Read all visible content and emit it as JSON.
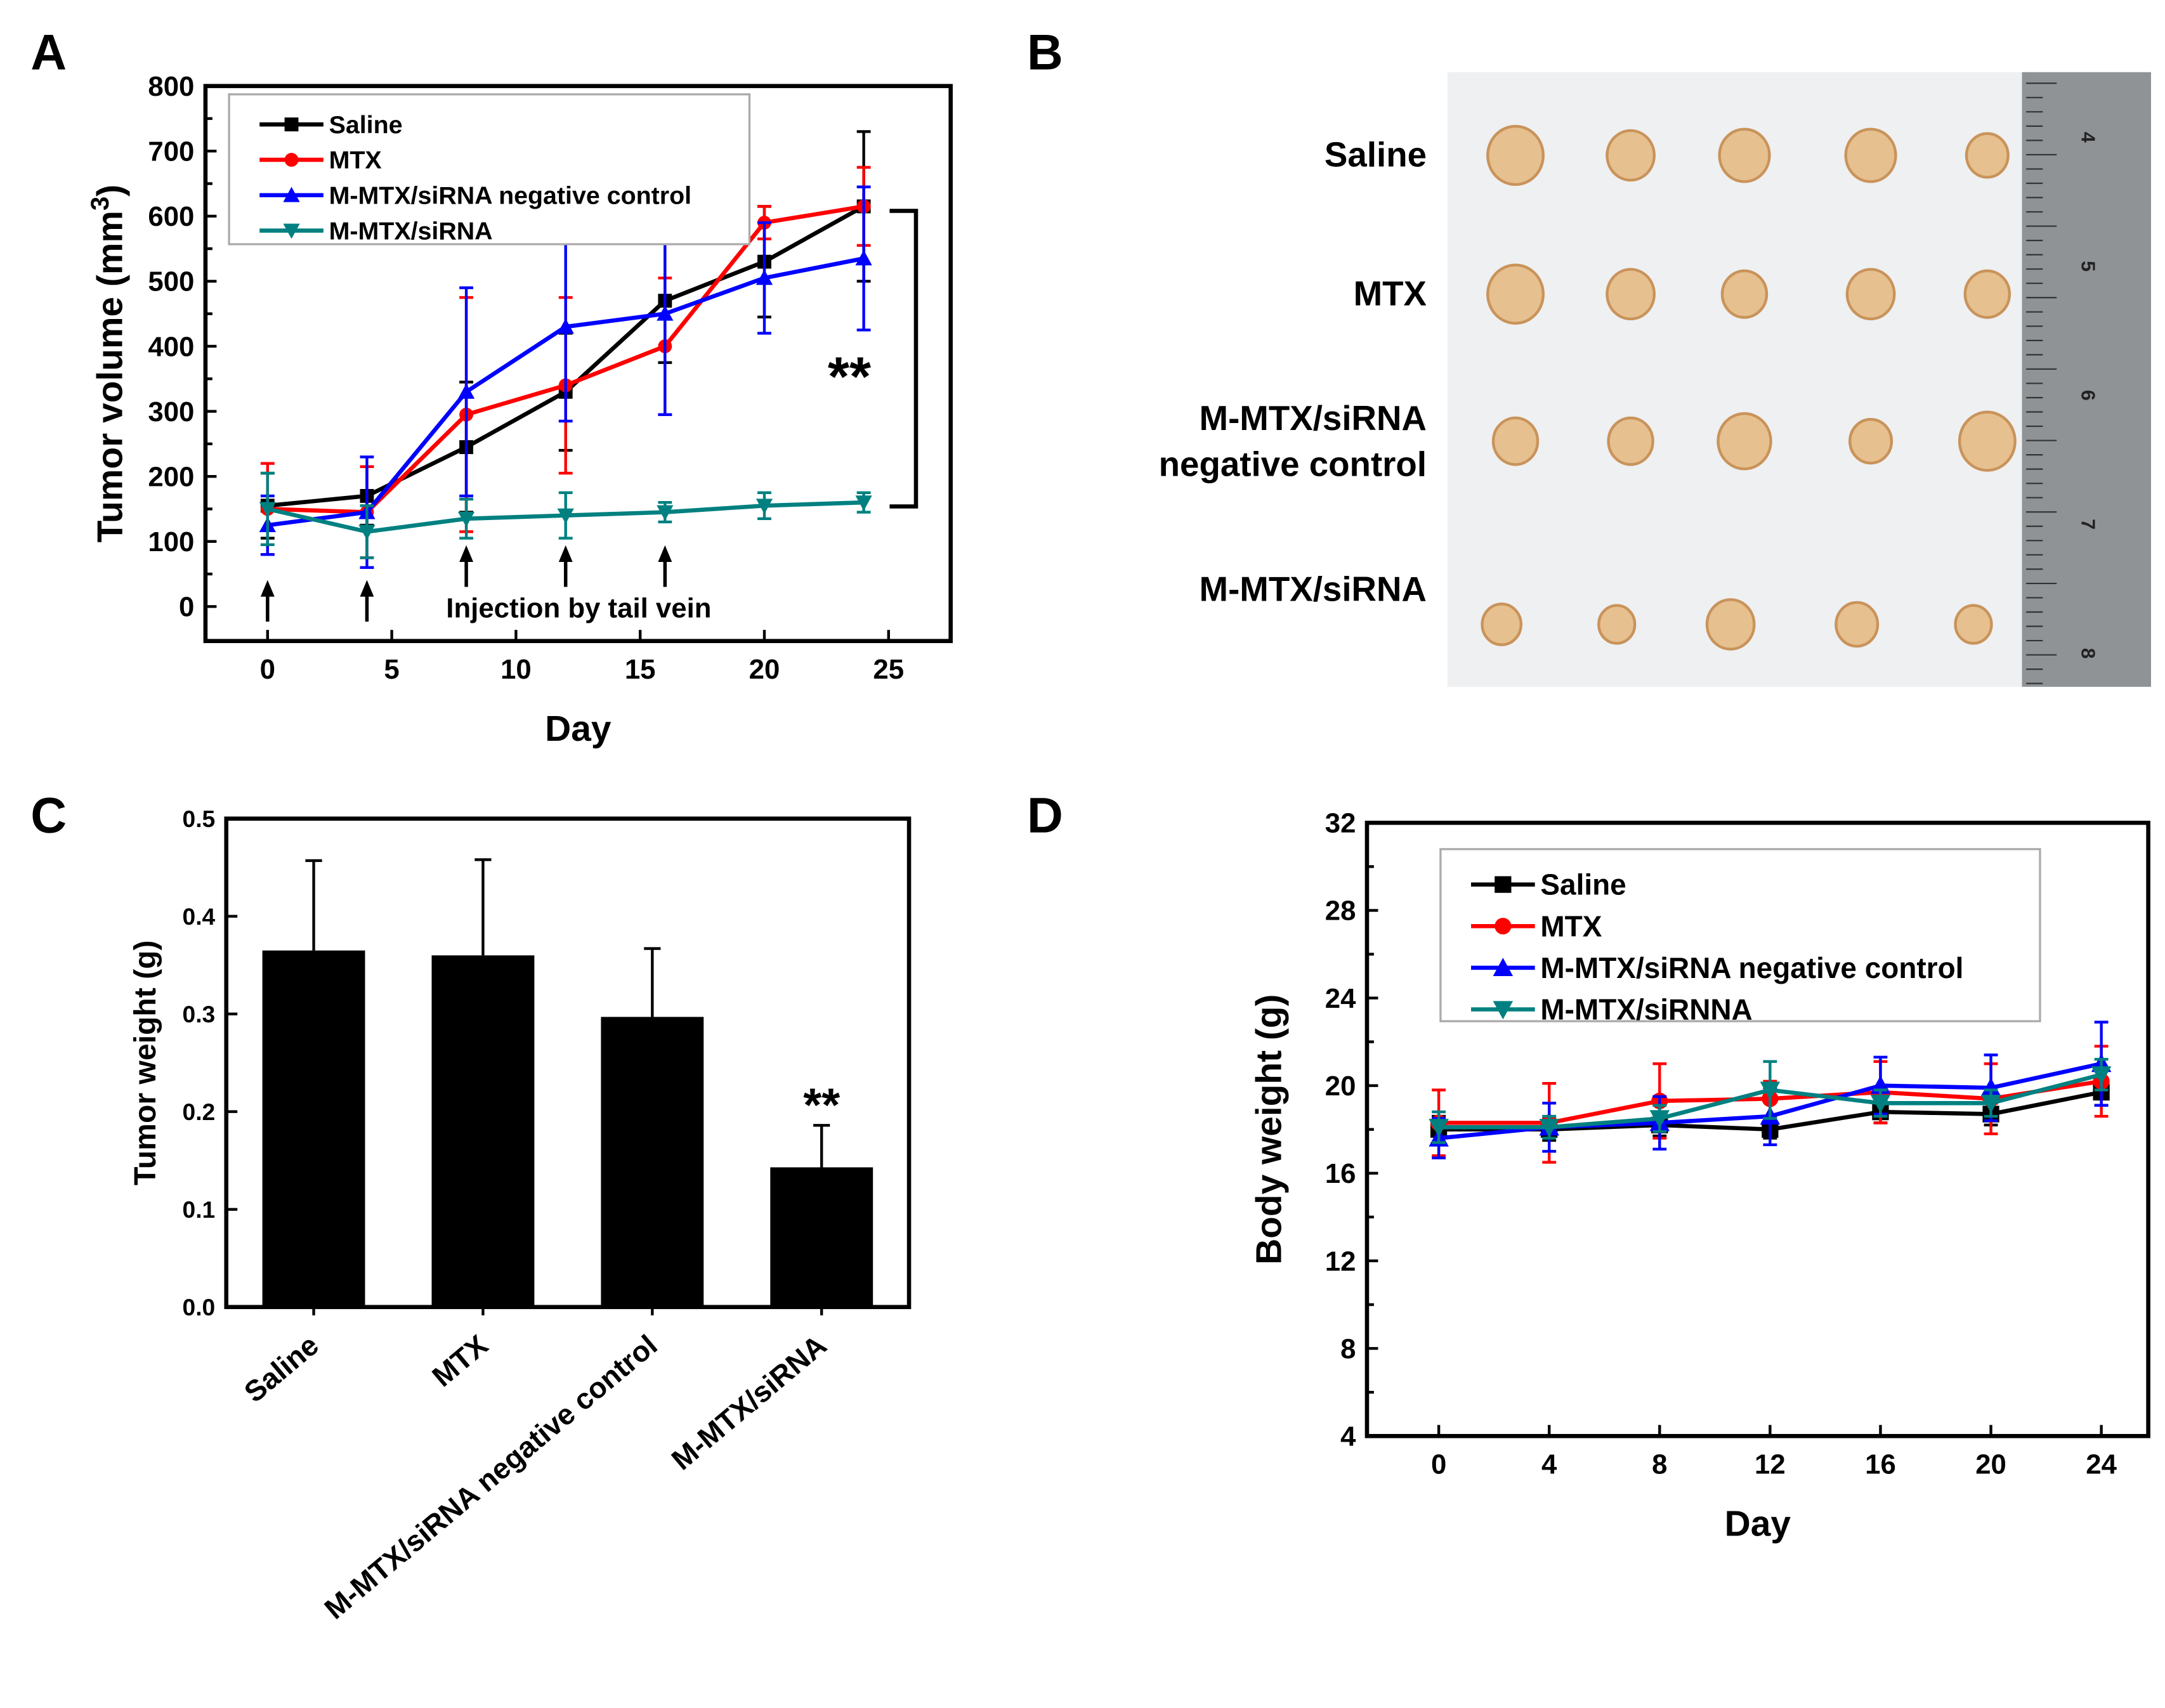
{
  "panel_labels": [
    "A",
    "B",
    "C",
    "D"
  ],
  "chart_data": [
    {
      "id": "A",
      "type": "line",
      "xlabel": "Day",
      "ylabel": "Tumor volume (mm",
      "ylabel_sup": "3",
      "ylabel_close": ")",
      "xlim": [
        -2.5,
        27.5
      ],
      "ylim": [
        -53,
        800
      ],
      "xticks": [
        0,
        5,
        10,
        15,
        20,
        25
      ],
      "yticks": [
        0,
        100,
        200,
        300,
        400,
        500,
        600,
        700,
        800
      ],
      "x": [
        0,
        4,
        8,
        12,
        16,
        20,
        24
      ],
      "series": [
        {
          "name": "Saline",
          "color": "#000000",
          "marker": "square",
          "values": [
            155,
            170,
            245,
            330,
            470,
            530,
            615
          ],
          "errors": [
            50,
            45,
            100,
            90,
            95,
            85,
            115
          ]
        },
        {
          "name": "MTX",
          "color": "#ff0000",
          "marker": "circle",
          "values": [
            150,
            145,
            295,
            340,
            400,
            590,
            615
          ],
          "errors": [
            70,
            70,
            180,
            135,
            105,
            25,
            60
          ]
        },
        {
          "name": "M-MTX/siRNA negative control",
          "color": "#0000ff",
          "marker": "triangle-up",
          "values": [
            125,
            145,
            330,
            430,
            450,
            505,
            535
          ],
          "errors": [
            45,
            85,
            160,
            145,
            155,
            85,
            110
          ]
        },
        {
          "name": "M-MTX/siRNA",
          "color": "#008080",
          "marker": "triangle-down",
          "values": [
            150,
            115,
            135,
            140,
            145,
            155,
            160
          ],
          "errors": [
            55,
            40,
            30,
            35,
            15,
            20,
            15
          ]
        }
      ],
      "injection_days": [
        0,
        4,
        8,
        12,
        16
      ],
      "annotation": "Injection by tail vein",
      "significance": "**",
      "legend_position": "top-left"
    },
    {
      "id": "B",
      "type": "image",
      "row_labels": [
        "Saline",
        "MTX",
        "M-MTX/siRNA negative control",
        "M-MTX/siRNA"
      ],
      "row_label_lines": [
        [
          "Saline"
        ],
        [
          "MTX"
        ],
        [
          "M-MTX/siRNA",
          "negative control"
        ],
        [
          "M-MTX/siRNA"
        ]
      ],
      "ruler_numbers": [
        "4",
        "5",
        "6",
        "7",
        "8"
      ]
    },
    {
      "id": "C",
      "type": "bar",
      "ylabel": "Tumor weight (g)",
      "ylim": [
        0,
        0.5
      ],
      "yticks": [
        "0.0",
        "0.1",
        "0.2",
        "0.3",
        "0.4",
        "0.5"
      ],
      "categories": [
        "Saline",
        "MTX",
        "M-MTX/siRNA negative control",
        "M-MTX/siRNA"
      ],
      "values": [
        0.365,
        0.36,
        0.297,
        0.143
      ],
      "errors": [
        0.092,
        0.098,
        0.07,
        0.043
      ],
      "color": "#000000",
      "significance": {
        "category": "M-MTX/siRNA",
        "label": "**"
      }
    },
    {
      "id": "D",
      "type": "line",
      "xlabel": "Day",
      "ylabel": "Body weight (g)",
      "xlim": [
        -2.6,
        25.7
      ],
      "ylim": [
        4,
        32
      ],
      "xticks": [
        0,
        4,
        8,
        12,
        16,
        20,
        24
      ],
      "yticks": [
        4,
        8,
        12,
        16,
        20,
        24,
        28,
        32
      ],
      "x": [
        0,
        4,
        8,
        12,
        16,
        20,
        24
      ],
      "series": [
        {
          "name": "Saline",
          "color": "#000000",
          "marker": "square",
          "values": [
            18.0,
            18.0,
            18.2,
            18.0,
            18.8,
            18.7,
            19.7
          ],
          "errors": [
            0.6,
            0.5,
            0.5,
            0.4,
            0.5,
            0.5,
            0.6
          ]
        },
        {
          "name": "MTX",
          "color": "#ff0000",
          "marker": "circle",
          "values": [
            18.3,
            18.3,
            19.3,
            19.4,
            19.7,
            19.4,
            20.2
          ],
          "errors": [
            1.5,
            1.8,
            1.7,
            0.8,
            1.4,
            1.6,
            1.6
          ]
        },
        {
          "name": "M-MTX/siRNA negative control",
          "color": "#0000ff",
          "marker": "triangle-up",
          "values": [
            17.6,
            18.1,
            18.3,
            18.6,
            20.0,
            19.9,
            21.0
          ],
          "errors": [
            0.9,
            1.1,
            1.2,
            1.3,
            1.3,
            1.5,
            1.9
          ]
        },
        {
          "name": "M-MTX/siRNNA",
          "color": "#008080",
          "marker": "triangle-down",
          "values": [
            18.1,
            18.1,
            18.5,
            19.8,
            19.2,
            19.2,
            20.5
          ],
          "errors": [
            0.7,
            0.5,
            0.6,
            1.3,
            0.6,
            0.6,
            0.7
          ]
        }
      ],
      "legend_position": "top-left"
    }
  ]
}
